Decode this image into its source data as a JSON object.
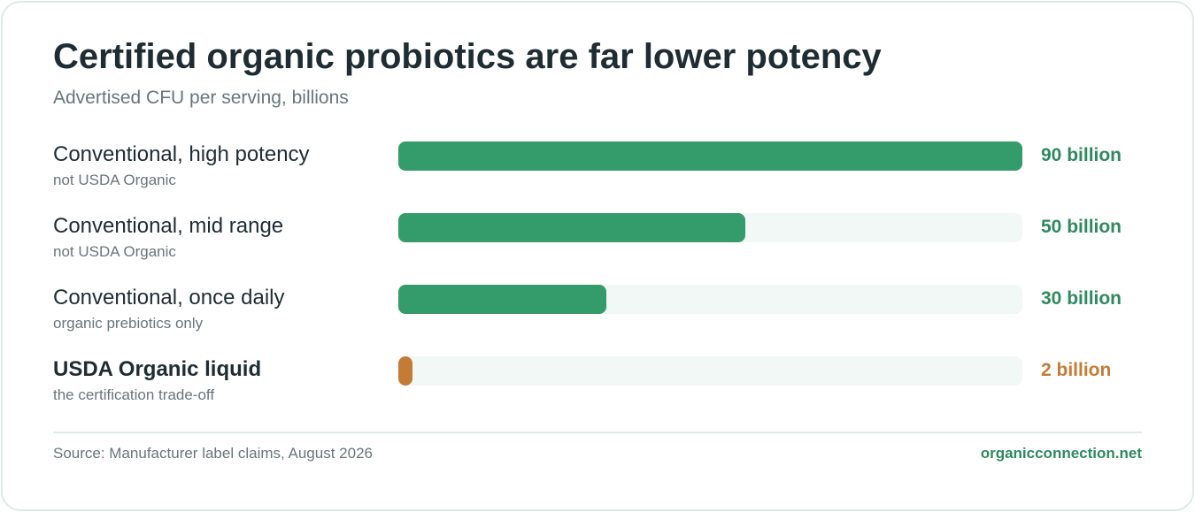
{
  "colors": {
    "conventional": "#349b6a",
    "organic": "#c47b36",
    "track": "#f2f8f5",
    "value_conventional": "#2e8a5e",
    "value_organic": "#c47b36"
  },
  "chart_data": {
    "type": "bar",
    "orientation": "horizontal",
    "title": "Certified organic probiotics are far lower potency",
    "subtitle": "Advertised CFU per serving, billions",
    "xlim": [
      0,
      90
    ],
    "grid": false,
    "categories": [
      "Conventional, high potency",
      "Conventional, mid range",
      "Conventional, once daily",
      "USDA Organic liquid"
    ],
    "sublabels": [
      "not USDA Organic",
      "not USDA Organic",
      "organic prebiotics only",
      "the certification trade-off"
    ],
    "values": [
      90,
      50,
      30,
      2
    ],
    "value_labels": [
      "90 billion",
      "50 billion",
      "30 billion",
      "2 billion"
    ],
    "highlight": [
      false,
      false,
      false,
      true
    ]
  },
  "footer": {
    "source": "Source: Manufacturer label claims, August 2026",
    "site": "organicconnection.net"
  }
}
